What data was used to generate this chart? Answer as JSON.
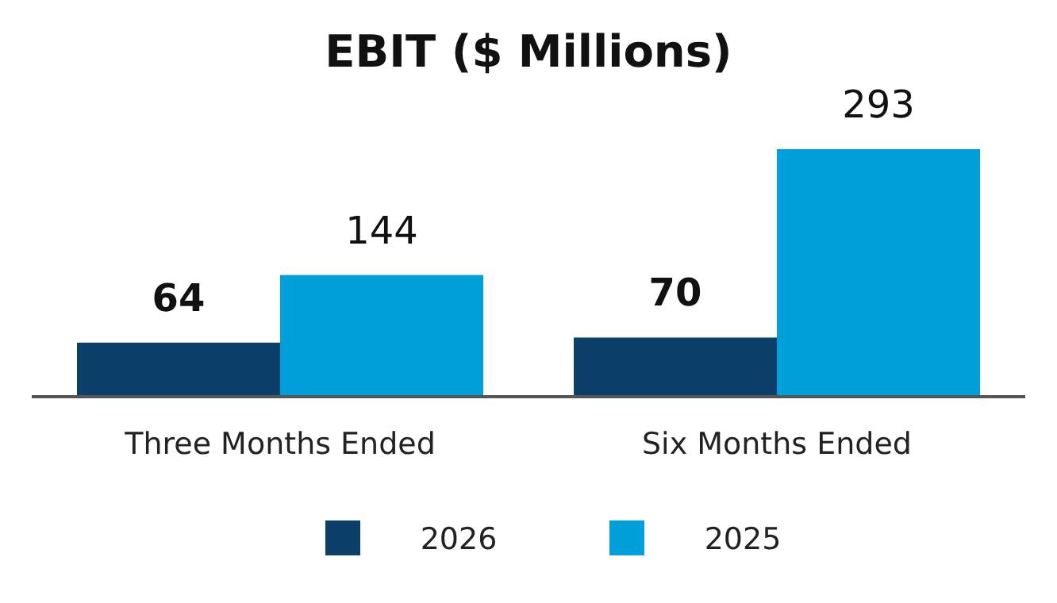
{
  "chart_data": {
    "type": "bar",
    "title": "EBIT ($ Millions)",
    "categories": [
      "Three Months Ended",
      "Six Months Ended"
    ],
    "series": [
      {
        "name": "2026",
        "color": "#0c3f6a",
        "values": [
          64,
          70
        ]
      },
      {
        "name": "2025",
        "color": "#00a0dc",
        "values": [
          144,
          293
        ]
      }
    ],
    "data_labels": true,
    "legend": "bottom"
  }
}
